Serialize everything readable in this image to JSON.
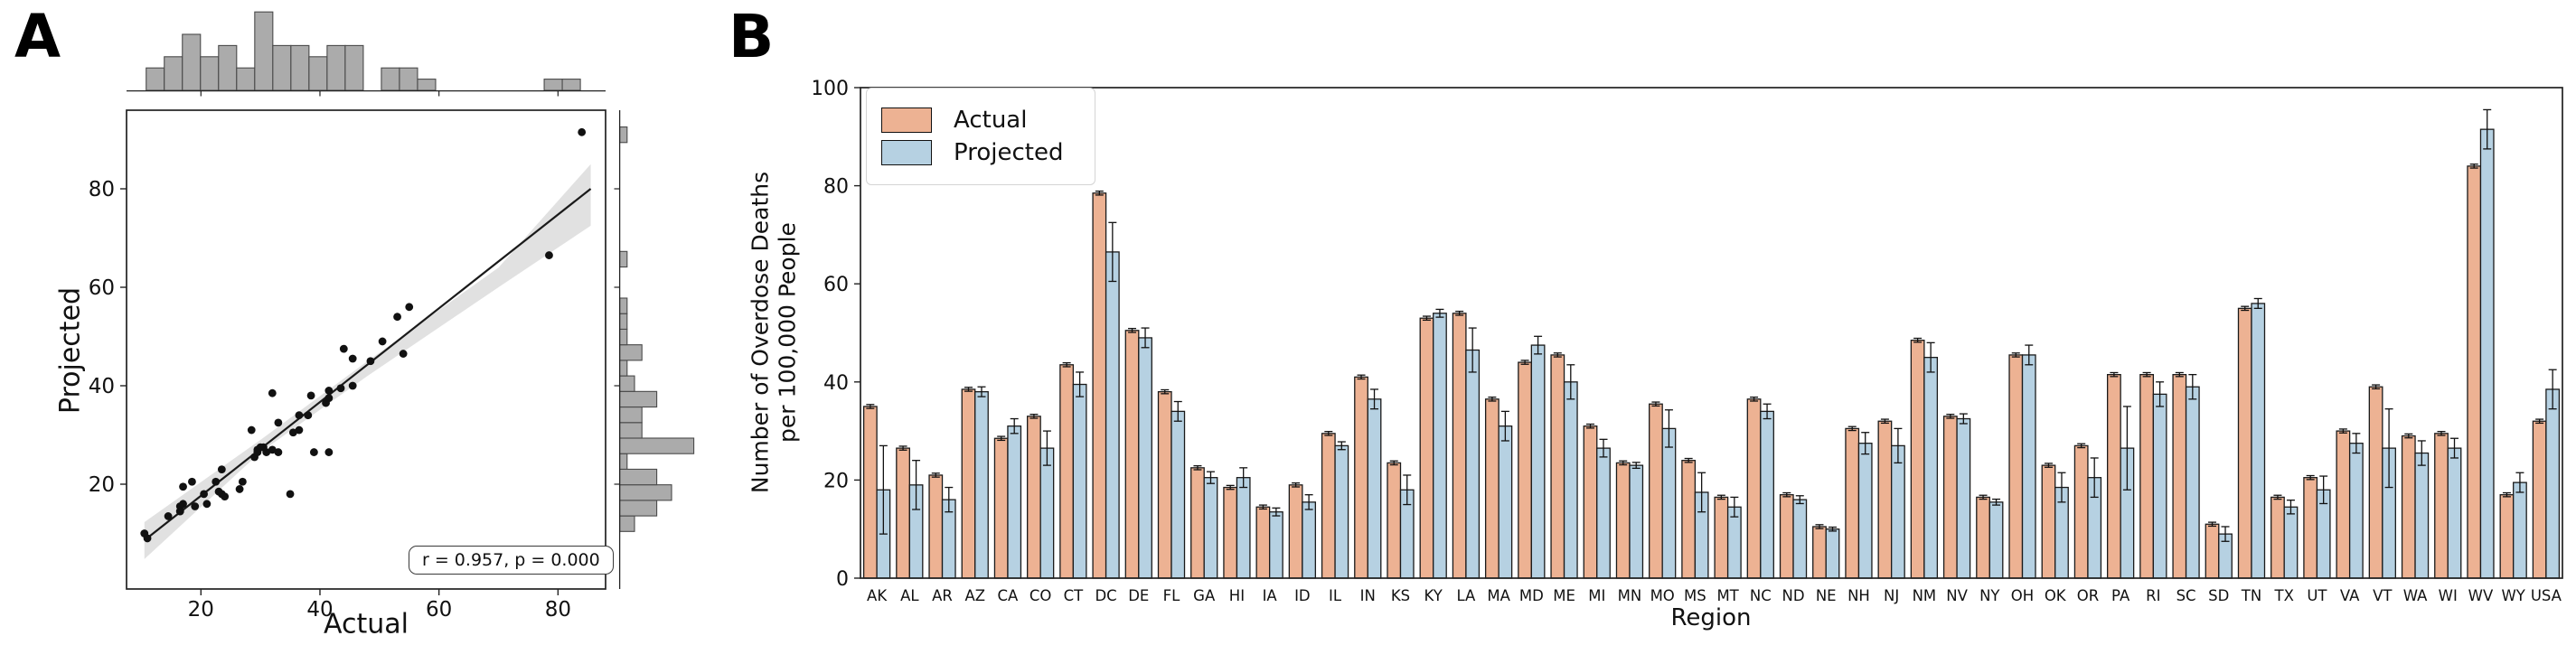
{
  "panels": {
    "a": {
      "letter": "A",
      "xlabel": "Actual",
      "ylabel": "Projected",
      "annotation": "r = 0.957, p = 0.000"
    },
    "b": {
      "letter": "B",
      "xlabel": "Region",
      "ylabel_line1": "Number of Overdose Deaths",
      "ylabel_line2": "per 100,000 People",
      "legend": {
        "actual": "Actual",
        "projected": "Projected"
      }
    }
  },
  "colors": {
    "actual": "#edb293",
    "projected": "#b6d1e2",
    "bar_edge": "#1a1a1a",
    "hist": "#ababab",
    "hist_edge": "#4a4a4a",
    "point": "#111111",
    "line": "#1a1a1a",
    "band": "#c9c9c9",
    "axis": "#222222"
  },
  "chart_data": [
    {
      "type": "scatter",
      "title": "Jointplot of Actual vs Projected overdose death rates",
      "xlabel": "Actual",
      "ylabel": "Projected",
      "annotation": "r = 0.957, p = 0.000",
      "x_ticks": [
        20,
        40,
        60,
        80
      ],
      "y_ticks": [
        20,
        40,
        60,
        80
      ],
      "xlim": [
        7.5,
        88
      ],
      "ylim": [
        0,
        97.5
      ],
      "grid": false,
      "points_x": [
        35,
        26.5,
        21,
        38.5,
        28.5,
        33,
        43.5,
        78.5,
        50.5,
        38,
        22.5,
        18.5,
        14.5,
        19,
        29.5,
        41,
        23.5,
        53,
        54,
        36.5,
        44,
        45.5,
        31,
        23.5,
        35.5,
        24,
        16.5,
        36.5,
        17,
        10.5,
        30.5,
        32,
        48.5,
        33,
        16.5,
        45.5,
        23,
        27,
        41.5,
        41.5,
        41.5,
        11,
        55,
        16.5,
        20.5,
        30,
        39,
        29,
        29.5,
        84,
        17,
        32
      ],
      "points_y": [
        18,
        19,
        16,
        38,
        31,
        26.5,
        39.5,
        66.5,
        49,
        34,
        20.5,
        20.5,
        13.5,
        15.5,
        27,
        36.5,
        18,
        54,
        46.5,
        31,
        47.5,
        40,
        26.5,
        23,
        30.5,
        17.5,
        14.5,
        34,
        16,
        10,
        27.5,
        27,
        45,
        32.5,
        15.5,
        45.5,
        18.5,
        20.5,
        26.5,
        37.5,
        39,
        9,
        56,
        14.5,
        18,
        27.5,
        26.5,
        25.5,
        26.5,
        91.5,
        19.5,
        38.5
      ],
      "regression_line": {
        "x": [
          10.5,
          85.5
        ],
        "y": [
          8.6,
          80.0
        ]
      },
      "ci_band": {
        "x": [
          10.5,
          30,
          48,
          70,
          85.5
        ],
        "upper": [
          12.3,
          29,
          45,
          64,
          85
        ],
        "lower": [
          4.8,
          26.5,
          42,
          60,
          72.5
        ]
      },
      "marginal_hist_top": {
        "start": 10.8,
        "bin_width": 3.04,
        "counts": [
          2,
          3,
          5,
          3,
          4,
          2,
          7,
          4,
          4,
          3,
          4,
          4,
          0,
          2,
          2,
          1,
          0,
          0,
          0,
          0,
          0,
          0,
          1,
          1
        ]
      },
      "marginal_hist_right": {
        "start": 10.4,
        "bin_width": 3.16,
        "counts": [
          2,
          5,
          7,
          5,
          1,
          10,
          3,
          3,
          5,
          2,
          1,
          3,
          1,
          1,
          1,
          0,
          0,
          1,
          0,
          0,
          0,
          0,
          0,
          0,
          0,
          1
        ]
      }
    },
    {
      "type": "bar",
      "title": "Actual vs Projected overdose deaths by region",
      "xlabel": "Region",
      "ylabel": "Number of Overdose Deaths per 100,000 People",
      "y_ticks": [
        0,
        20,
        40,
        60,
        80,
        100
      ],
      "ylim": [
        0,
        100
      ],
      "grid": false,
      "legend_position": "upper left",
      "categories": [
        "AK",
        "AL",
        "AR",
        "AZ",
        "CA",
        "CO",
        "CT",
        "DC",
        "DE",
        "FL",
        "GA",
        "HI",
        "IA",
        "ID",
        "IL",
        "IN",
        "KS",
        "KY",
        "LA",
        "MA",
        "MD",
        "ME",
        "MI",
        "MN",
        "MO",
        "MS",
        "MT",
        "NC",
        "ND",
        "NE",
        "NH",
        "NJ",
        "NM",
        "NV",
        "NY",
        "OH",
        "OK",
        "OR",
        "PA",
        "RI",
        "SC",
        "SD",
        "TN",
        "TX",
        "UT",
        "VA",
        "VT",
        "WA",
        "WI",
        "WV",
        "WY",
        "USA"
      ],
      "series": [
        {
          "name": "Actual",
          "color": "#edb293",
          "values": [
            35,
            26.5,
            21,
            38.5,
            28.5,
            33,
            43.5,
            78.5,
            50.5,
            38,
            22.5,
            18.5,
            14.5,
            19,
            29.5,
            41,
            23.5,
            53,
            54,
            36.5,
            44,
            45.5,
            31,
            23.5,
            35.5,
            24,
            16.5,
            36.5,
            17,
            10.5,
            30.5,
            32,
            48.5,
            33,
            16.5,
            45.5,
            23,
            27,
            41.5,
            41.5,
            41.5,
            11,
            55,
            16.5,
            20.5,
            30,
            39,
            29,
            29.5,
            84,
            17,
            32
          ],
          "errors": [
            0.4,
            0.4,
            0.4,
            0.4,
            0.4,
            0.4,
            0.4,
            0.4,
            0.4,
            0.4,
            0.4,
            0.4,
            0.4,
            0.4,
            0.4,
            0.4,
            0.4,
            0.4,
            0.4,
            0.4,
            0.4,
            0.4,
            0.4,
            0.4,
            0.4,
            0.4,
            0.4,
            0.4,
            0.4,
            0.4,
            0.4,
            0.4,
            0.4,
            0.4,
            0.4,
            0.4,
            0.4,
            0.4,
            0.4,
            0.4,
            0.4,
            0.4,
            0.4,
            0.4,
            0.4,
            0.4,
            0.4,
            0.4,
            0.4,
            0.4,
            0.4,
            0.4
          ]
        },
        {
          "name": "Projected",
          "color": "#b6d1e2",
          "values": [
            18,
            19,
            16,
            38,
            31,
            26.5,
            39.5,
            66.5,
            49,
            34,
            20.5,
            20.5,
            13.5,
            15.5,
            27,
            36.5,
            18,
            54,
            46.5,
            31,
            47.5,
            40,
            26.5,
            23,
            30.5,
            17.5,
            14.5,
            34,
            16,
            10,
            27.5,
            27,
            45,
            32.5,
            15.5,
            45.5,
            18.5,
            20.5,
            26.5,
            37.5,
            39,
            9,
            56,
            14.5,
            18,
            27.5,
            26.5,
            25.5,
            26.5,
            91.5,
            19.5,
            38.5
          ],
          "errors": [
            9,
            5,
            2.5,
            1,
            1.5,
            3.5,
            2.5,
            6,
            2,
            2,
            1.2,
            2,
            0.8,
            1.5,
            0.8,
            2,
            3,
            0.8,
            4.5,
            3,
            1.8,
            3.5,
            1.8,
            0.6,
            3.8,
            4,
            2,
            1.5,
            0.8,
            0.4,
            2.2,
            3.5,
            3,
            1,
            0.6,
            2,
            3,
            4,
            8.5,
            2.5,
            2.5,
            1.5,
            1,
            1.4,
            2.8,
            2,
            8,
            2.5,
            2,
            4,
            2,
            4
          ]
        }
      ]
    }
  ]
}
